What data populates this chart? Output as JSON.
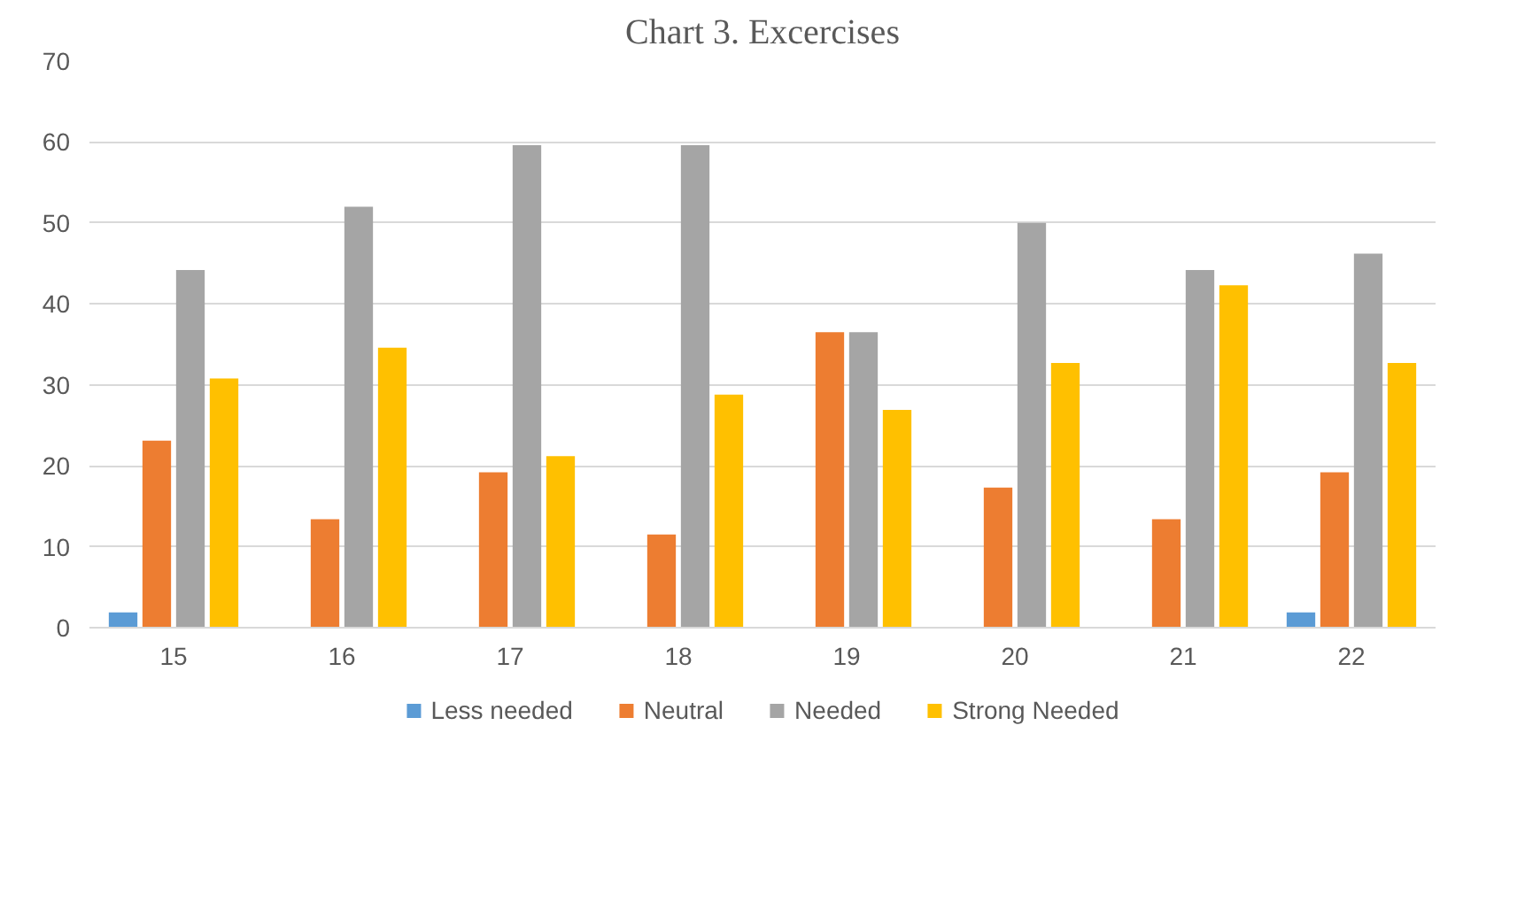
{
  "chart_data": {
    "type": "bar",
    "title": "Chart 3. Excercises",
    "categories": [
      "15",
      "16",
      "17",
      "18",
      "19",
      "20",
      "21",
      "22"
    ],
    "series": [
      {
        "name": "Less needed",
        "color": "#5b9bd5",
        "values": [
          1.9,
          0,
          0,
          0,
          0,
          0,
          0,
          1.9
        ]
      },
      {
        "name": "Neutral",
        "color": "#ed7d31",
        "values": [
          23.1,
          13.4,
          19.2,
          11.5,
          36.5,
          17.3,
          13.4,
          19.2
        ]
      },
      {
        "name": "Needed",
        "color": "#a5a5a5",
        "values": [
          44.2,
          52,
          59.6,
          59.6,
          36.5,
          50,
          44.2,
          46.2
        ]
      },
      {
        "name": "Strong Needed",
        "color": "#ffc000",
        "values": [
          30.8,
          34.6,
          21.2,
          28.8,
          26.9,
          32.7,
          42.3,
          32.7
        ]
      }
    ],
    "ylim": [
      0,
      70
    ],
    "yticks": [
      0,
      10,
      20,
      30,
      40,
      50,
      60,
      70
    ],
    "grid": "y",
    "legend": "bottom"
  }
}
